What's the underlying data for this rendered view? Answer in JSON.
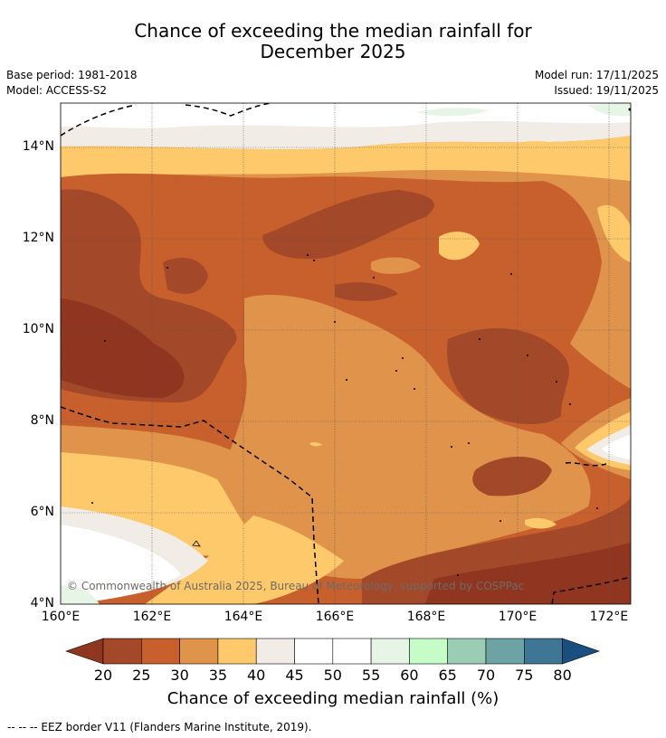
{
  "title_line1": "Chance of exceeding the median rainfall for",
  "title_line2": "December 2025",
  "base_period": "Base period: 1981-2018",
  "model": "Model: ACCESS-S2",
  "model_run": "Model run: 17/11/2025",
  "issued": "Issued: 19/11/2025",
  "y_ticks": [
    "14°N",
    "12°N",
    "10°N",
    "8°N",
    "6°N",
    "4°N"
  ],
  "x_ticks": [
    "160°E",
    "162°E",
    "164°E",
    "166°E",
    "168°E",
    "170°E",
    "172°E"
  ],
  "copyright": "© Commonwealth of Australia 2025, Bureau of Meteorology, supported by COSPPac",
  "colorbar": {
    "title": "Chance of exceeding median rainfall (%)",
    "labels": [
      "20",
      "25",
      "30",
      "35",
      "40",
      "45",
      "50",
      "55",
      "60",
      "65",
      "70",
      "75",
      "80"
    ],
    "colors": [
      "#a34828",
      "#c8602e",
      "#e0934a",
      "#fdc96a",
      "#f1ece6",
      "#ffffff",
      "#ffffff",
      "#e7f5e6",
      "#c6fcc8",
      "#9bcdb5",
      "#6da3a5",
      "#3f7695"
    ],
    "under_color": "#903520",
    "over_color": "#1a4e80"
  },
  "footnote": "-- -- -- EEZ border V11 (Flanders Marine Institute, 2019)."
}
